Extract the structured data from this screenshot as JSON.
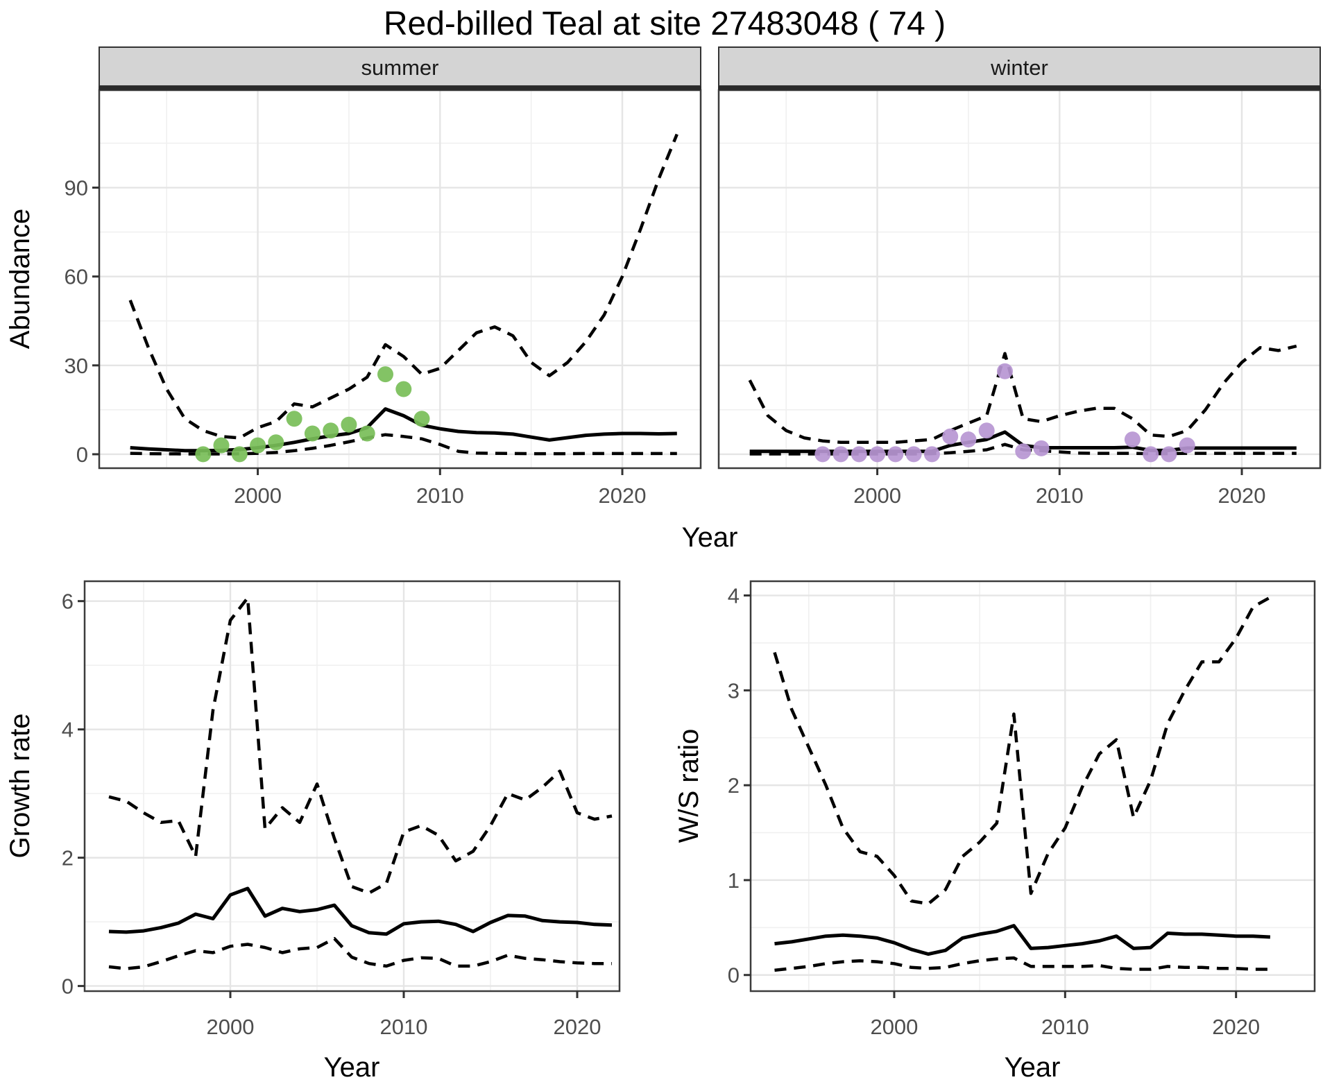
{
  "title": "Red-billed Teal at site 27483048 ( 74 )",
  "colors": {
    "summer_point": "#78be58",
    "winter_point": "#b796d2",
    "line": "#000000",
    "strip_bg": "#d4d4d4",
    "strip_border": "#333333",
    "panel_border": "#3c3c3c",
    "grid_major": "#e5e5e5",
    "grid_minor": "#f0f0f0",
    "tick_text": "#4d4d4d",
    "tick_mark": "#333333"
  },
  "axes": {
    "abundance": {
      "ylabel": "Abundance",
      "xlabel": "Year"
    },
    "growth": {
      "ylabel": "Growth rate",
      "xlabel": "Year"
    },
    "ws": {
      "ylabel": "W/S ratio",
      "xlabel": "Year"
    }
  },
  "chart_data": [
    {
      "id": "abundance-summer",
      "type": "line",
      "facet_label": "summer",
      "xlabel": "Year",
      "ylabel": "Abundance",
      "x_ticks": [
        2000,
        2010,
        2020
      ],
      "x_minor": [
        1995,
        2005,
        2015
      ],
      "y_ticks": [
        0,
        30,
        60,
        90
      ],
      "y_minor": [
        15,
        45,
        75,
        105
      ],
      "xlim": [
        1991.3,
        2024.3
      ],
      "ylim": [
        -4.7,
        122.9
      ],
      "legend": "none",
      "grid": true,
      "x": [
        1993,
        1994,
        1995,
        1996,
        1997,
        1998,
        1999,
        2000,
        2001,
        2002,
        2003,
        2004,
        2005,
        2006,
        2007,
        2008,
        2009,
        2010,
        2011,
        2012,
        2013,
        2014,
        2015,
        2016,
        2017,
        2018,
        2019,
        2020,
        2021,
        2022,
        2023
      ],
      "series": [
        {
          "name": "upper_95ci",
          "style": "dashed",
          "values": [
            52,
            36,
            22,
            12,
            8,
            6,
            5.5,
            9,
            11,
            17,
            16,
            19,
            22,
            26,
            37,
            33,
            27,
            29,
            35,
            41,
            43,
            40,
            31,
            26.5,
            31,
            38,
            47,
            60,
            76,
            93,
            108
          ]
        },
        {
          "name": "median",
          "style": "solid",
          "values": [
            2.2,
            1.8,
            1.5,
            1.2,
            1.2,
            1.3,
            1.6,
            2.2,
            3,
            4,
            5.2,
            6.2,
            7,
            9,
            15.3,
            13,
            9.8,
            8.6,
            7.7,
            7.3,
            7.2,
            6.8,
            5.8,
            4.8,
            5.6,
            6.4,
            6.8,
            7,
            7,
            6.9,
            7
          ]
        },
        {
          "name": "lower_95ci",
          "style": "dashed",
          "values": [
            0.3,
            0.2,
            0.15,
            0.1,
            0.1,
            0.1,
            0.15,
            0.3,
            0.6,
            1.2,
            2,
            3,
            4.2,
            5.5,
            6.6,
            6,
            5.2,
            3.3,
            1,
            0.4,
            0.3,
            0.25,
            0.2,
            0.2,
            0.2,
            0.25,
            0.25,
            0.25,
            0.25,
            0.25,
            0.25
          ]
        }
      ],
      "points": {
        "name": "observed-count-summer",
        "color_key": "summer_point",
        "x": [
          1997,
          1998,
          1999,
          2000,
          2001,
          2002,
          2003,
          2004,
          2005,
          2006,
          2007,
          2008,
          2009
        ],
        "y": [
          0,
          3,
          0,
          3,
          4,
          12,
          7,
          8,
          10,
          7,
          27,
          22,
          12
        ]
      }
    },
    {
      "id": "abundance-winter",
      "type": "line",
      "facet_label": "winter",
      "xlabel": "Year",
      "ylabel": "Abundance",
      "x_ticks": [
        2000,
        2010,
        2020
      ],
      "x_minor": [
        1995,
        2005,
        2015
      ],
      "y_ticks": [
        0,
        30,
        60,
        90
      ],
      "y_minor": [
        15,
        45,
        75,
        105
      ],
      "xlim": [
        1991.3,
        2024.3
      ],
      "ylim": [
        -4.7,
        122.9
      ],
      "legend": "none",
      "grid": true,
      "x": [
        1993,
        1994,
        1995,
        1996,
        1997,
        1998,
        1999,
        2000,
        2001,
        2002,
        2003,
        2004,
        2005,
        2006,
        2007,
        2008,
        2009,
        2010,
        2011,
        2012,
        2013,
        2014,
        2015,
        2016,
        2017,
        2018,
        2019,
        2020,
        2021,
        2022,
        2023
      ],
      "series": [
        {
          "name": "upper_95ci",
          "style": "dashed",
          "values": [
            25,
            13,
            8,
            5.5,
            4.5,
            4,
            4,
            4,
            4,
            4.5,
            5,
            8,
            10.5,
            13,
            34,
            12,
            11,
            13,
            14.5,
            15.5,
            15.5,
            12,
            6.5,
            6,
            8,
            15,
            24,
            31,
            36,
            35,
            36.5
          ]
        },
        {
          "name": "median",
          "style": "solid",
          "values": [
            1,
            1,
            1,
            1,
            1,
            1,
            1,
            1,
            1,
            1,
            1,
            3,
            4,
            5,
            7.5,
            3,
            2.2,
            2.2,
            2.2,
            2.2,
            2.2,
            2.4,
            1.3,
            1.3,
            2.1,
            2.1,
            2.1,
            2.1,
            2.1,
            2.1,
            2.1
          ]
        },
        {
          "name": "lower_95ci",
          "style": "dashed",
          "values": [
            0.1,
            0.1,
            0.1,
            0.1,
            0.1,
            0.1,
            0.1,
            0.1,
            0.1,
            0.1,
            0.2,
            0.5,
            1,
            1.5,
            3.3,
            1.5,
            1.2,
            0.8,
            0.4,
            0.3,
            0.3,
            0.3,
            0.2,
            0.2,
            0.3,
            0.3,
            0.3,
            0.3,
            0.3,
            0.3,
            0.3
          ]
        }
      ],
      "points": {
        "name": "observed-count-winter",
        "color_key": "winter_point",
        "x": [
          1997,
          1998,
          1999,
          2000,
          2001,
          2002,
          2003,
          2004,
          2005,
          2006,
          2007,
          2008,
          2009,
          2014,
          2015,
          2016,
          2017
        ],
        "y": [
          0,
          0,
          0,
          0,
          0,
          0,
          0,
          6,
          5,
          8,
          28,
          1,
          2,
          5,
          0,
          0,
          3
        ]
      }
    },
    {
      "id": "growth-rate",
      "type": "line",
      "facet_label": null,
      "xlabel": "Year",
      "ylabel": "Growth rate",
      "x_ticks": [
        2000,
        2010,
        2020
      ],
      "x_minor": [
        1995,
        2005,
        2015
      ],
      "y_ticks": [
        0,
        2,
        4,
        6
      ],
      "y_minor": [
        1,
        3,
        5
      ],
      "xlim": [
        1991.6,
        2022.44
      ],
      "ylim": [
        -0.08,
        6.31
      ],
      "legend": "none",
      "grid": true,
      "x": [
        1993,
        1994,
        1995,
        1996,
        1997,
        1998,
        1999,
        2000,
        2001,
        2002,
        2003,
        2004,
        2005,
        2006,
        2007,
        2008,
        2009,
        2010,
        2011,
        2012,
        2013,
        2014,
        2015,
        2016,
        2017,
        2018,
        2019,
        2020,
        2021,
        2022
      ],
      "series": [
        {
          "name": "upper_95ci",
          "style": "dashed",
          "values": [
            2.95,
            2.88,
            2.7,
            2.55,
            2.58,
            2.02,
            4.3,
            5.7,
            6.05,
            2.45,
            2.78,
            2.55,
            3.15,
            2.3,
            1.55,
            1.45,
            1.6,
            2.4,
            2.5,
            2.35,
            1.95,
            2.1,
            2.5,
            3,
            2.9,
            3.1,
            3.35,
            2.7,
            2.6,
            2.65
          ]
        },
        {
          "name": "median",
          "style": "solid",
          "values": [
            0.85,
            0.84,
            0.86,
            0.91,
            0.98,
            1.12,
            1.05,
            1.42,
            1.52,
            1.09,
            1.21,
            1.16,
            1.19,
            1.26,
            0.94,
            0.83,
            0.81,
            0.97,
            1,
            1.01,
            0.96,
            0.85,
            0.99,
            1.1,
            1.09,
            1.02,
            1,
            0.99,
            0.96,
            0.95
          ]
        },
        {
          "name": "lower_95ci",
          "style": "dashed",
          "values": [
            0.3,
            0.27,
            0.3,
            0.38,
            0.47,
            0.55,
            0.52,
            0.62,
            0.65,
            0.6,
            0.52,
            0.58,
            0.6,
            0.74,
            0.45,
            0.35,
            0.31,
            0.4,
            0.44,
            0.43,
            0.31,
            0.31,
            0.38,
            0.48,
            0.43,
            0.41,
            0.38,
            0.36,
            0.35,
            0.35
          ]
        }
      ],
      "points": null
    },
    {
      "id": "ws-ratio",
      "type": "line",
      "facet_label": null,
      "xlabel": "Year",
      "ylabel": "W/S ratio",
      "x_ticks": [
        2000,
        2010,
        2020
      ],
      "x_minor": [
        1995,
        2005,
        2015
      ],
      "y_ticks": [
        0,
        1,
        2,
        3,
        4
      ],
      "y_minor": [
        0.5,
        1.5,
        2.5,
        3.5
      ],
      "xlim": [
        1991.6,
        2024.6
      ],
      "ylim": [
        -0.17,
        4.15
      ],
      "legend": "none",
      "grid": true,
      "x": [
        1993,
        1994,
        1995,
        1996,
        1997,
        1998,
        1999,
        2000,
        2001,
        2002,
        2003,
        2004,
        2005,
        2006,
        2007,
        2008,
        2009,
        2010,
        2011,
        2012,
        2013,
        2014,
        2015,
        2016,
        2017,
        2018,
        2019,
        2020,
        2021,
        2022
      ],
      "series": [
        {
          "name": "upper_95ci",
          "style": "dashed",
          "values": [
            3.4,
            2.8,
            2.4,
            2,
            1.55,
            1.3,
            1.25,
            1.05,
            0.78,
            0.75,
            0.9,
            1.25,
            1.4,
            1.6,
            2.75,
            0.86,
            1.28,
            1.55,
            1.98,
            2.33,
            2.48,
            1.66,
            2.05,
            2.65,
            3,
            3.3,
            3.3,
            3.55,
            3.88,
            3.98
          ]
        },
        {
          "name": "median",
          "style": "solid",
          "values": [
            0.33,
            0.35,
            0.38,
            0.41,
            0.42,
            0.41,
            0.39,
            0.34,
            0.27,
            0.22,
            0.26,
            0.39,
            0.43,
            0.46,
            0.52,
            0.28,
            0.29,
            0.31,
            0.33,
            0.36,
            0.41,
            0.28,
            0.29,
            0.44,
            0.43,
            0.43,
            0.42,
            0.41,
            0.41,
            0.4
          ]
        },
        {
          "name": "lower_95ci",
          "style": "dashed",
          "values": [
            0.05,
            0.07,
            0.09,
            0.12,
            0.14,
            0.15,
            0.14,
            0.12,
            0.08,
            0.07,
            0.08,
            0.12,
            0.15,
            0.17,
            0.18,
            0.09,
            0.09,
            0.09,
            0.09,
            0.1,
            0.07,
            0.06,
            0.06,
            0.09,
            0.08,
            0.08,
            0.07,
            0.07,
            0.06,
            0.06
          ]
        }
      ],
      "points": null
    }
  ]
}
